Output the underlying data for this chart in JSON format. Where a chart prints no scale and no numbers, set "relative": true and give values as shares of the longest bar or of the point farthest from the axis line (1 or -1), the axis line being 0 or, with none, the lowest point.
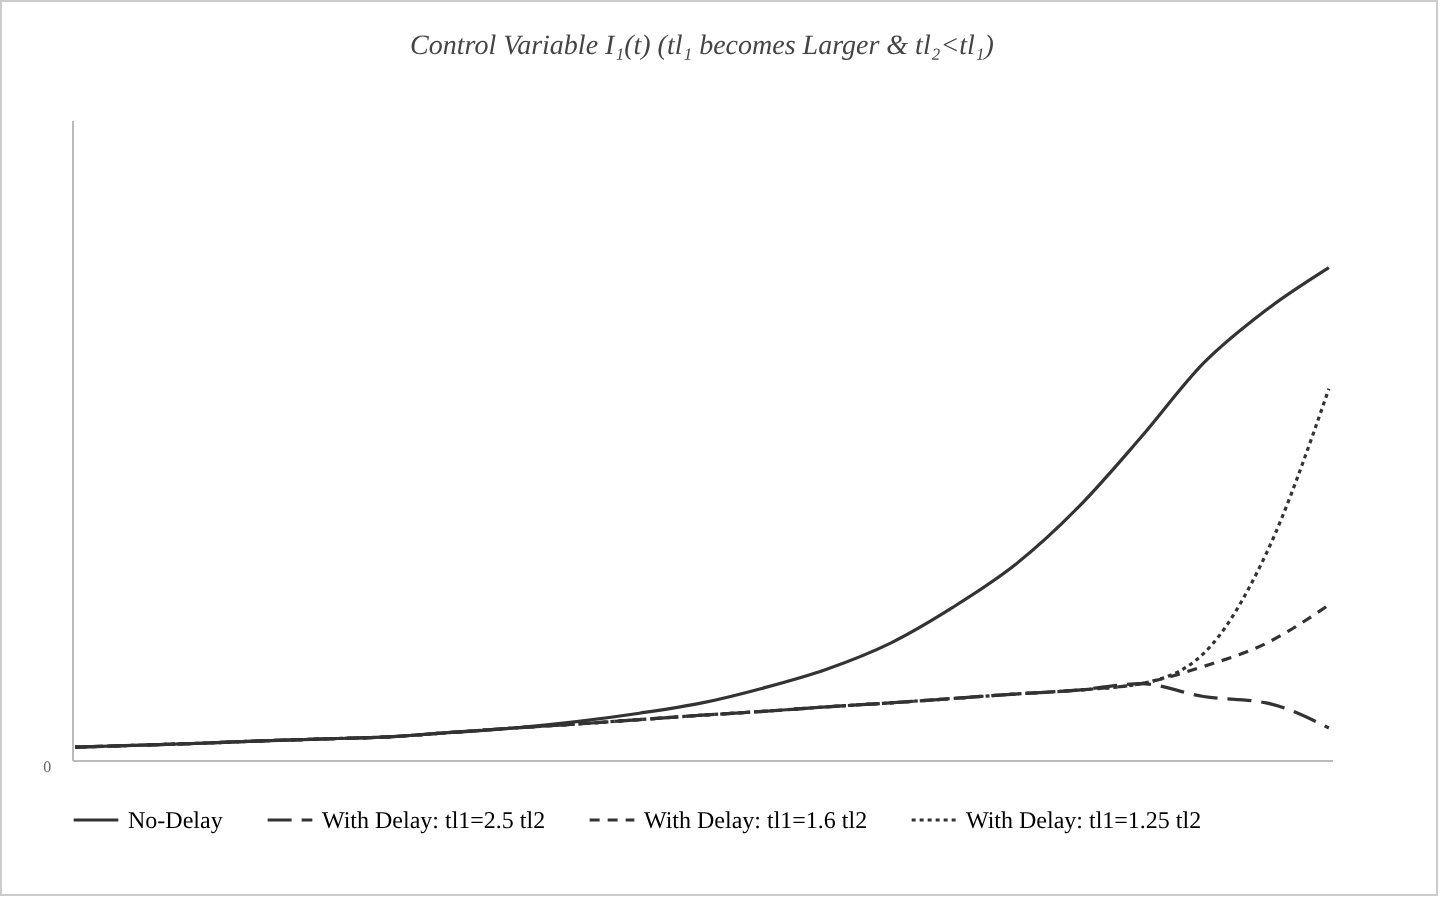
{
  "chart_data": {
    "type": "line",
    "title": "Control Variable I₁(t) (tl₁ becomes Larger & tl₂<tl₁)",
    "relative": true,
    "categories": [
      null,
      null,
      null,
      null,
      null,
      null,
      null,
      null,
      null,
      null,
      null,
      null,
      null,
      null,
      null,
      null,
      null,
      null,
      null,
      null,
      null
    ],
    "series": [
      {
        "name": "No-Delay",
        "color": "#333333",
        "line_style": "solid",
        "values": [
          0.026,
          0.03,
          0.034,
          0.039,
          0.043,
          0.047,
          0.056,
          0.065,
          0.078,
          0.095,
          0.116,
          0.147,
          0.185,
          0.237,
          0.31,
          0.397,
          0.513,
          0.655,
          0.806,
          0.914,
          1
        ]
      },
      {
        "name": "With Delay: tl1=2.5 tl2",
        "color": "#333333",
        "line_style": "dashed",
        "values": [
          0.026,
          0.03,
          0.034,
          0.039,
          0.043,
          0.047,
          0.056,
          0.065,
          0.073,
          0.082,
          0.091,
          0.099,
          0.108,
          0.116,
          0.125,
          0.134,
          0.142,
          0.155,
          0.129,
          0.116,
          0.065
        ]
      },
      {
        "name": "With Delay: tl1=1.6 tl2",
        "color": "#333333",
        "line_style": "dashed",
        "values": [
          0.026,
          0.03,
          0.034,
          0.039,
          0.043,
          0.047,
          0.056,
          0.065,
          0.073,
          0.082,
          0.091,
          0.099,
          0.108,
          0.116,
          0.125,
          0.134,
          0.142,
          0.155,
          0.19,
          0.237,
          0.315
        ]
      },
      {
        "name": "With Delay: tl1=1.25 tl2",
        "color": "#333333",
        "line_style": "dotted",
        "values": [
          0.026,
          0.03,
          0.034,
          0.039,
          0.043,
          0.047,
          0.056,
          0.065,
          0.073,
          0.082,
          0.091,
          0.099,
          0.108,
          0.116,
          0.125,
          0.134,
          0.142,
          0.155,
          0.216,
          0.419,
          0.754
        ]
      }
    ],
    "annotations": [
      "0"
    ],
    "legend": "bottom"
  }
}
